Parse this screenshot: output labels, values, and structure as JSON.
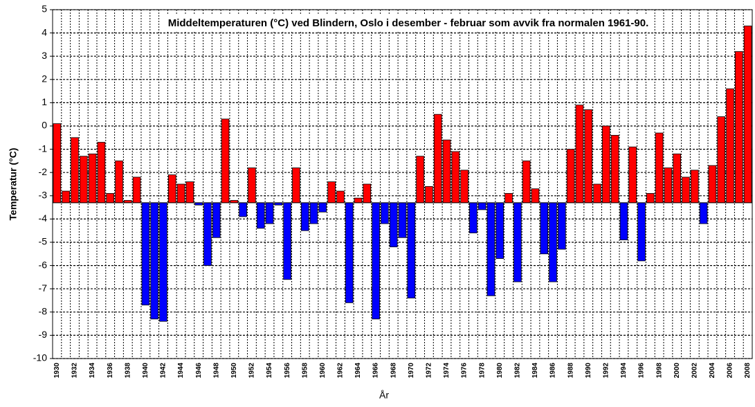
{
  "chart_data": {
    "type": "bar",
    "title": "Middeltemperaturen (°C) ved Blindern, Oslo  i desember - februar som avvik fra normalen 1961-90.",
    "x_label": "År",
    "y_label": "Temperatur (°C)",
    "categories": [
      "1930",
      null,
      "1932",
      null,
      "1934",
      null,
      "1936",
      null,
      "1938",
      null,
      "1940",
      null,
      "1942",
      null,
      "1944",
      null,
      "1946",
      null,
      "1948",
      null,
      "1950",
      null,
      "1952",
      null,
      "1954",
      null,
      "1956",
      null,
      "1958",
      null,
      "1960",
      null,
      "1962",
      null,
      "1964",
      null,
      "1966",
      null,
      "1968",
      null,
      "1970",
      null,
      "1972",
      null,
      "1974",
      null,
      "1976",
      null,
      "1978",
      null,
      "1980",
      null,
      "1982",
      null,
      "1984",
      null,
      "1986",
      null,
      "1988",
      null,
      "1990",
      null,
      "1992",
      null,
      "1994",
      null,
      "1996",
      null,
      "1998",
      null,
      "2000",
      null,
      "2002",
      null,
      "2004",
      null,
      "2006",
      null,
      "2008"
    ],
    "values": [
      0.1,
      -2.8,
      -0.5,
      -1.3,
      -1.2,
      -0.7,
      -2.9,
      -1.5,
      -3.2,
      -2.2,
      -7.7,
      -8.3,
      -8.4,
      -2.1,
      -2.5,
      -2.4,
      -3.4,
      -6.0,
      -4.8,
      0.3,
      -3.2,
      -3.9,
      -1.8,
      -4.4,
      -4.2,
      -3.4,
      -6.6,
      -1.8,
      -4.5,
      -4.2,
      -3.7,
      -2.4,
      -2.8,
      -7.6,
      -3.1,
      -2.5,
      -8.3,
      -4.2,
      -5.2,
      -4.8,
      -7.4,
      -1.3,
      -2.6,
      0.5,
      -0.6,
      -1.1,
      -1.9,
      -4.6,
      -3.6,
      -7.3,
      -5.7,
      -2.9,
      -6.7,
      -1.5,
      -2.7,
      -5.5,
      -6.7,
      -5.3,
      -1.0,
      0.9,
      0.7,
      -2.5,
      0.0,
      -0.4,
      -4.9,
      -0.9,
      -5.8,
      -2.9,
      -0.3,
      -1.8,
      -1.2,
      -2.2,
      -1.9,
      -4.2,
      -1.7,
      0.4,
      1.6,
      3.2,
      4.3
    ],
    "baseline": -3.3,
    "color_above": "#ff0000",
    "color_below": "#0000ff",
    "ylim": [
      -10,
      5
    ],
    "yticks": [
      -10,
      -9,
      -8,
      -7,
      -6,
      -5,
      -4,
      -3,
      -2,
      -1,
      0,
      1,
      2,
      3,
      4,
      5
    ],
    "grid": true
  }
}
